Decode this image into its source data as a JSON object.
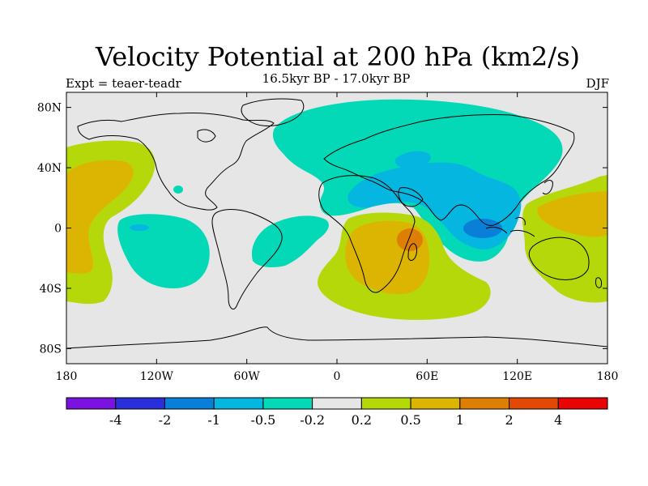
{
  "title": "Velocity Potential at 200 hPa (km2/s)",
  "subtitle": "16.5kyr BP - 17.0kyr BP",
  "experiment": "Expt = teaer-teadr",
  "season": "DJF",
  "map": {
    "lon_range": [
      -180,
      180
    ],
    "lat_range": [
      -90,
      90
    ],
    "background_color": "#e6e6e6",
    "coastline_color": "#000000",
    "lat_tick_labels": [
      "80N",
      "40N",
      "0",
      "40S",
      "80S"
    ],
    "lat_tick_values": [
      80,
      40,
      0,
      -40,
      -80
    ],
    "lon_tick_labels": [
      "180",
      "120W",
      "60W",
      "0",
      "60E",
      "120E",
      "180"
    ],
    "lon_tick_values": [
      -180,
      -120,
      -60,
      0,
      60,
      120,
      180
    ]
  },
  "colorbar": {
    "colors": [
      "#7a12e0",
      "#2b2fd9",
      "#0a7fd8",
      "#05b7e0",
      "#04d9b7",
      "#e6e6e6",
      "#b5d80b",
      "#dcb503",
      "#dd7e05",
      "#e14905",
      "#e80404"
    ],
    "labels": [
      "-4",
      "-2",
      "-1",
      "-0.5",
      "-0.2",
      "0.2",
      "0.5",
      "1",
      "2",
      "4"
    ]
  }
}
